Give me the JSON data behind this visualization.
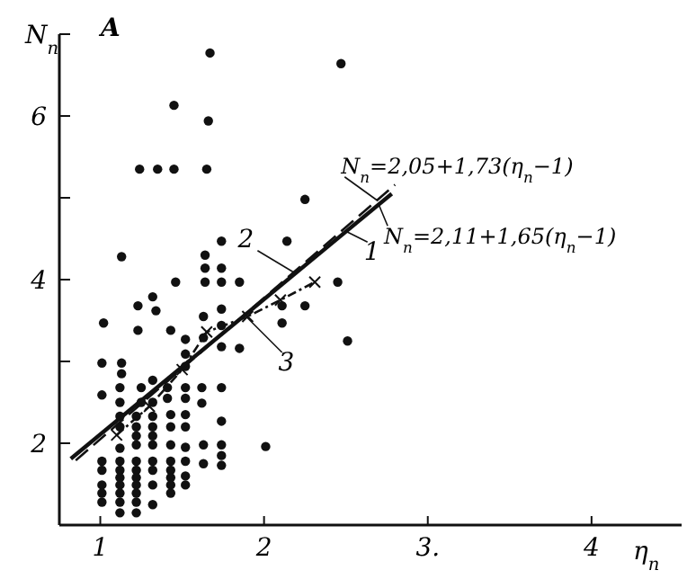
{
  "chart_data": {
    "type": "scatter",
    "title": "A",
    "xlabel": "η$_{п}$",
    "ylabel": "N$_{п}$",
    "xlim": [
      0.75,
      4.55
    ],
    "ylim": [
      1,
      7
    ],
    "xticks": [
      1,
      2,
      {
        "value": 3,
        "label": "3."
      },
      4
    ],
    "yticks": [
      2,
      {
        "value": 3,
        "label": null
      },
      4,
      {
        "value": 5,
        "label": null
      },
      6
    ],
    "grid": false,
    "marker": "circle",
    "series": [
      {
        "color": "#111111",
        "x": [
          1.67,
          2.47,
          1.45,
          1.66,
          1.24,
          1.35,
          1.45,
          1.65,
          2.25,
          1.13,
          1.74,
          2.14,
          1.64,
          1.64,
          1.74,
          1.46,
          1.64,
          1.74,
          1.85,
          2.45,
          1.32,
          1.23,
          1.34,
          1.02,
          1.23,
          1.43,
          1.63,
          1.74,
          1.74,
          2.11,
          2.25,
          2.11,
          2.51,
          1.85,
          1.52,
          1.52,
          1.52,
          1.63,
          1.74,
          1.01,
          1.13,
          1.13,
          1.12,
          1.25,
          1.32,
          1.41,
          1.52,
          1.62,
          1.74,
          1.01,
          1.12,
          1.25,
          1.32,
          1.41,
          1.52,
          1.62,
          1.74,
          1.43,
          1.52,
          1.12,
          1.22,
          1.32,
          1.12,
          1.22,
          1.32,
          1.43,
          1.52,
          1.22,
          1.32,
          1.22,
          1.32,
          1.43,
          1.52,
          1.63,
          1.74,
          1.12,
          1.63,
          1.74,
          1.74,
          1.01,
          1.12,
          1.22,
          1.32,
          1.43,
          1.52,
          1.01,
          1.12,
          1.22,
          1.32,
          1.43,
          1.12,
          1.22,
          1.43,
          1.52,
          1.01,
          1.12,
          1.22,
          1.32,
          1.43,
          1.52,
          1.01,
          1.12,
          1.22,
          1.43,
          1.01,
          1.12,
          1.22,
          1.32,
          1.12,
          1.22,
          2.01
        ],
        "values": [
          6.77,
          6.64,
          6.13,
          5.94,
          5.35,
          5.35,
          5.35,
          5.35,
          4.98,
          4.28,
          4.47,
          4.47,
          4.3,
          4.14,
          4.14,
          3.97,
          3.97,
          3.97,
          3.97,
          3.97,
          3.79,
          3.68,
          3.62,
          3.47,
          3.38,
          3.38,
          3.55,
          3.64,
          3.44,
          3.68,
          3.68,
          3.47,
          3.25,
          3.16,
          3.27,
          3.09,
          2.94,
          3.29,
          3.18,
          2.98,
          2.98,
          2.85,
          2.68,
          2.68,
          2.77,
          2.68,
          2.68,
          2.68,
          2.68,
          2.59,
          2.5,
          2.5,
          2.5,
          2.55,
          2.55,
          2.49,
          2.27,
          2.35,
          2.35,
          2.33,
          2.33,
          2.33,
          2.2,
          2.2,
          2.2,
          2.2,
          2.2,
          2.09,
          2.09,
          1.98,
          1.98,
          1.98,
          1.95,
          1.98,
          1.98,
          1.94,
          1.75,
          1.85,
          1.73,
          1.78,
          1.78,
          1.78,
          1.78,
          1.78,
          1.78,
          1.67,
          1.67,
          1.67,
          1.67,
          1.67,
          1.58,
          1.58,
          1.58,
          1.6,
          1.49,
          1.49,
          1.49,
          1.49,
          1.49,
          1.49,
          1.39,
          1.39,
          1.39,
          1.39,
          1.28,
          1.28,
          1.28,
          1.25,
          1.15,
          1.15,
          1.96
        ]
      },
      {
        "type": "line",
        "color": "#111111",
        "line_style": "solid",
        "marker": "none",
        "x": [
          0.82,
          2.78
        ],
        "values": [
          1.81,
          5.05
        ]
      },
      {
        "type": "line",
        "color": "#111111",
        "line_style": "dashed",
        "marker": "none",
        "x": [
          0.85,
          2.8
        ],
        "values": [
          1.79,
          5.16
        ]
      },
      {
        "type": "line",
        "color": "#111111",
        "line_style": "dotted",
        "marker": "cross",
        "x": [
          1.1,
          1.3,
          1.5,
          1.65,
          1.9,
          2.1,
          2.31
        ],
        "values": [
          2.1,
          2.45,
          2.9,
          3.36,
          3.55,
          3.75,
          3.97
        ]
      }
    ],
    "annotations": [
      {
        "text": "1",
        "x": 2.5,
        "y": 4.59
      },
      {
        "text": "2",
        "x": 2.18,
        "y": 4.09
      },
      {
        "text": "3",
        "x": 1.89,
        "y": 3.55
      },
      {
        "text": "N$_{п}$=2,05+1,73(η$_{п}$−1)",
        "x": 2.69,
        "y": 4.97
      },
      {
        "text": "N$_{п}$=2,11+1,65(η$_{п}$−1)",
        "x": 2.7,
        "y": 4.92
      }
    ]
  }
}
